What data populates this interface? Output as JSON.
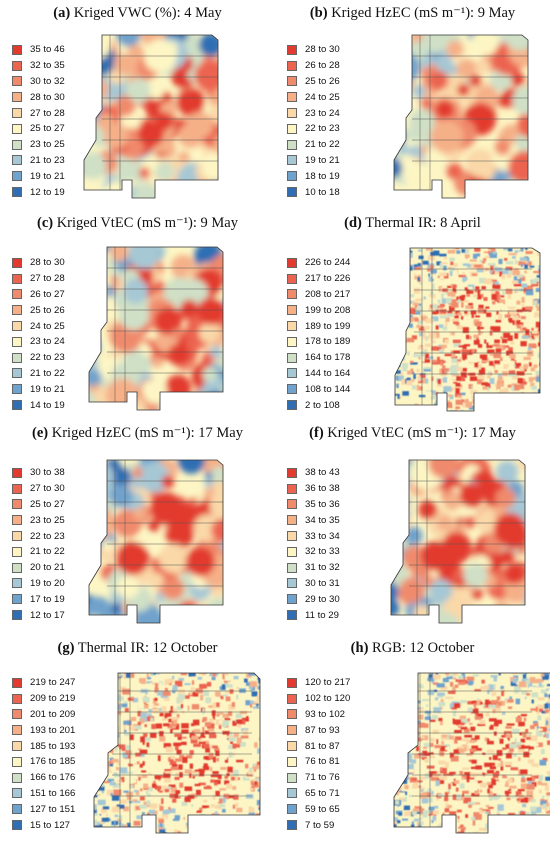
{
  "panels": [
    {
      "letter": "(a)",
      "title": " Kriged VWC (%): 4 May",
      "shape": "A",
      "legend": [
        "35 to 46",
        "32 to 35",
        "30 to 32",
        "28 to 30",
        "27 to 28",
        "25 to 27",
        "23 to 25",
        "21 to 23",
        "19 to 21",
        "12 to 19"
      ],
      "legend_colors": [
        "#e23a2e",
        "#ec6450",
        "#f08a6c",
        "#f5b088",
        "#fad8a8",
        "#fdf6c4",
        "#cfe0c6",
        "#a6c7d4",
        "#6fa2cc",
        "#2f6eb3"
      ]
    },
    {
      "letter": "(b)",
      "title": " Kriged HzEC (mS m⁻¹): 9 May",
      "shape": "A",
      "legend": [
        "28 to 30",
        "26 to 28",
        "25 to 26",
        "24 to 25",
        "23 to 24",
        "22 to 23",
        "21 to 22",
        "19 to 21",
        "18 to 19",
        "10 to 18"
      ],
      "legend_colors": [
        "#e23a2e",
        "#ec6450",
        "#f08a6c",
        "#f5b088",
        "#fad8a8",
        "#fdf6c4",
        "#cfe0c6",
        "#a6c7d4",
        "#6fa2cc",
        "#2f6eb3"
      ]
    },
    {
      "letter": "(c)",
      "title": " Kriged VtEC (mS m⁻¹): 9 May",
      "shape": "A",
      "legend": [
        "28 to 30",
        "27 to 28",
        "26 to 27",
        "25 to 26",
        "24 to 25",
        "23 to 24",
        "22 to 23",
        "21 to 22",
        "19 to 21",
        "14 to 19"
      ],
      "legend_colors": [
        "#e23a2e",
        "#ec6450",
        "#f08a6c",
        "#f5b088",
        "#fad8a8",
        "#fdf6c4",
        "#cfe0c6",
        "#a6c7d4",
        "#6fa2cc",
        "#2f6eb3"
      ]
    },
    {
      "letter": "(d)",
      "title": " Thermal IR: 8 April",
      "shape": "D",
      "legend": [
        "226 to 244",
        "217 to 226",
        "208 to 217",
        "199 to 208",
        "189 to 199",
        "178 to 189",
        "164 to 178",
        "144 to 164",
        "108 to 144",
        "2 to 108"
      ],
      "legend_colors": [
        "#e23a2e",
        "#ec6450",
        "#f08a6c",
        "#f5b088",
        "#fad8a8",
        "#fdf6c4",
        "#cfe0c6",
        "#a6c7d4",
        "#6fa2cc",
        "#2f6eb3"
      ]
    },
    {
      "letter": "(e)",
      "title": " Kriged HzEC (mS m⁻¹): 17 May",
      "shape": "A",
      "legend": [
        "30 to 38",
        "27 to 30",
        "25 to 27",
        "23 to 25",
        "22 to 23",
        "21 to 22",
        "20 to 21",
        "19 to 20",
        "17 to 19",
        "12 to 17"
      ],
      "legend_colors": [
        "#e23a2e",
        "#ec6450",
        "#f08a6c",
        "#f5b088",
        "#fad8a8",
        "#fdf6c4",
        "#cfe0c6",
        "#a6c7d4",
        "#6fa2cc",
        "#2f6eb3"
      ]
    },
    {
      "letter": "(f)",
      "title": " Kriged VtEC (mS m⁻¹): 17 May",
      "shape": "A",
      "legend": [
        "38 to 43",
        "36 to 38",
        "35 to 36",
        "34 to 35",
        "33 to 34",
        "32 to 33",
        "31 to 32",
        "30 to 31",
        "29 to 30",
        "11 to 29"
      ],
      "legend_colors": [
        "#e23a2e",
        "#ec6450",
        "#f08a6c",
        "#f5b088",
        "#fad8a8",
        "#fdf6c4",
        "#cfe0c6",
        "#a6c7d4",
        "#6fa2cc",
        "#2f6eb3"
      ]
    },
    {
      "letter": "(g)",
      "title": " Thermal IR: 12 October",
      "shape": "G",
      "legend": [
        "219 to 247",
        "209 to 219",
        "201 to 209",
        "193 to 201",
        "185 to 193",
        "176 to 185",
        "166 to 176",
        "151 to 166",
        "127 to 151",
        "15 to 127"
      ],
      "legend_colors": [
        "#e23a2e",
        "#ec6450",
        "#f08a6c",
        "#f5b088",
        "#fad8a8",
        "#fdf6c4",
        "#cfe0c6",
        "#a6c7d4",
        "#6fa2cc",
        "#2f6eb3"
      ]
    },
    {
      "letter": "(h)",
      "title": " RGB: 12 October",
      "shape": "G",
      "legend": [
        "120 to 217",
        "102 to 120",
        "93 to 102",
        "87 to 93",
        "81 to 87",
        "76 to 81",
        "71 to 76",
        "65 to 71",
        "59 to 65",
        "7 to 59"
      ],
      "legend_colors": [
        "#e23a2e",
        "#ec6450",
        "#f08a6c",
        "#f5b088",
        "#fad8a8",
        "#fdf6c4",
        "#cfe0c6",
        "#a6c7d4",
        "#6fa2cc",
        "#2f6eb3"
      ]
    }
  ]
}
